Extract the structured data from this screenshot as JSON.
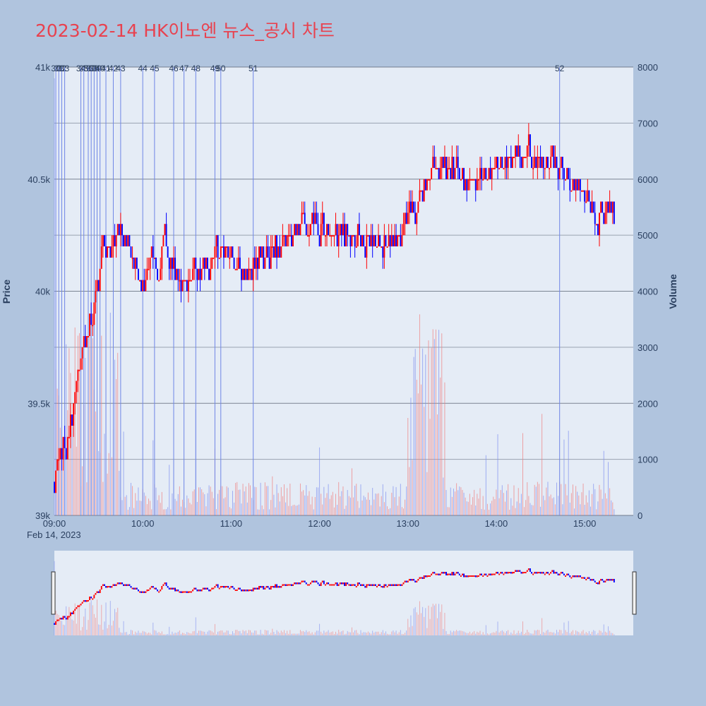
{
  "title": "2023-02-14 HK이노엔 뉴스_공시 차트",
  "chart_data": {
    "type": "candlestick",
    "ylabel": "Price",
    "y2label": "Volume",
    "ylim": [
      39000,
      41000
    ],
    "y2lim": [
      0,
      8000
    ],
    "price_ticks": [
      "39k",
      "39.5k",
      "40k",
      "40.5k",
      "41k"
    ],
    "price_tick_values": [
      39000,
      39500,
      40000,
      40500,
      41000
    ],
    "volume_ticks": [
      "0",
      "1000",
      "2000",
      "3000",
      "4000",
      "5000",
      "6000",
      "7000",
      "8000"
    ],
    "volume_tick_values": [
      0,
      1000,
      2000,
      3000,
      4000,
      5000,
      6000,
      7000,
      8000
    ],
    "x_tick_labels": [
      "09:00",
      "10:00",
      "11:00",
      "12:00",
      "13:00",
      "14:00",
      "15:00"
    ],
    "x_tick_minutes": [
      0,
      60,
      120,
      180,
      240,
      300,
      360
    ],
    "x_date_label": "Feb 14, 2023",
    "x_range_minutes": [
      0,
      393
    ],
    "up_color": "#ff0000",
    "down_color": "#0000ff",
    "news_markers": [
      {
        "label": "30",
        "minute": 1
      },
      {
        "label": "31",
        "minute": 3
      },
      {
        "label": "32",
        "minute": 5
      },
      {
        "label": "33",
        "minute": 7
      },
      {
        "label": "34",
        "minute": 18
      },
      {
        "label": "35",
        "minute": 20
      },
      {
        "label": "36",
        "minute": 23
      },
      {
        "label": "37",
        "minute": 25
      },
      {
        "label": "38",
        "minute": 27
      },
      {
        "label": "39",
        "minute": 29
      },
      {
        "label": "40",
        "minute": 31
      },
      {
        "label": "41",
        "minute": 35
      },
      {
        "label": "42",
        "minute": 40
      },
      {
        "label": "43",
        "minute": 45
      },
      {
        "label": "44",
        "minute": 60
      },
      {
        "label": "45",
        "minute": 68
      },
      {
        "label": "46",
        "minute": 81
      },
      {
        "label": "47",
        "minute": 88
      },
      {
        "label": "48",
        "minute": 96
      },
      {
        "label": "49",
        "minute": 109
      },
      {
        "label": "50",
        "minute": 113
      },
      {
        "label": "51",
        "minute": 135
      },
      {
        "label": "52",
        "minute": 343
      }
    ],
    "price_keypoints": [
      [
        0,
        39150
      ],
      [
        3,
        39300
      ],
      [
        8,
        39300
      ],
      [
        12,
        39450
      ],
      [
        15,
        39600
      ],
      [
        18,
        39700
      ],
      [
        20,
        39800
      ],
      [
        23,
        39850
      ],
      [
        26,
        39850
      ],
      [
        28,
        40000
      ],
      [
        30,
        40100
      ],
      [
        33,
        40250
      ],
      [
        35,
        40200
      ],
      [
        38,
        40150
      ],
      [
        41,
        40250
      ],
      [
        45,
        40250
      ],
      [
        50,
        40200
      ],
      [
        55,
        40150
      ],
      [
        60,
        40000
      ],
      [
        63,
        40100
      ],
      [
        66,
        40200
      ],
      [
        70,
        40050
      ],
      [
        75,
        40250
      ],
      [
        80,
        40100
      ],
      [
        85,
        40050
      ],
      [
        90,
        40050
      ],
      [
        100,
        40100
      ],
      [
        110,
        40150
      ],
      [
        115,
        40200
      ],
      [
        120,
        40150
      ],
      [
        130,
        40100
      ],
      [
        140,
        40150
      ],
      [
        150,
        40200
      ],
      [
        160,
        40250
      ],
      [
        170,
        40300
      ],
      [
        180,
        40300
      ],
      [
        190,
        40250
      ],
      [
        200,
        40250
      ],
      [
        210,
        40250
      ],
      [
        220,
        40200
      ],
      [
        230,
        40250
      ],
      [
        240,
        40300
      ],
      [
        245,
        40350
      ],
      [
        250,
        40450
      ],
      [
        255,
        40500
      ],
      [
        262,
        40550
      ],
      [
        270,
        40550
      ],
      [
        280,
        40500
      ],
      [
        290,
        40500
      ],
      [
        300,
        40550
      ],
      [
        310,
        40600
      ],
      [
        320,
        40600
      ],
      [
        330,
        40600
      ],
      [
        340,
        40550
      ],
      [
        348,
        40500
      ],
      [
        355,
        40450
      ],
      [
        362,
        40400
      ],
      [
        367,
        40300
      ],
      [
        372,
        40350
      ],
      [
        380,
        40350
      ]
    ]
  }
}
